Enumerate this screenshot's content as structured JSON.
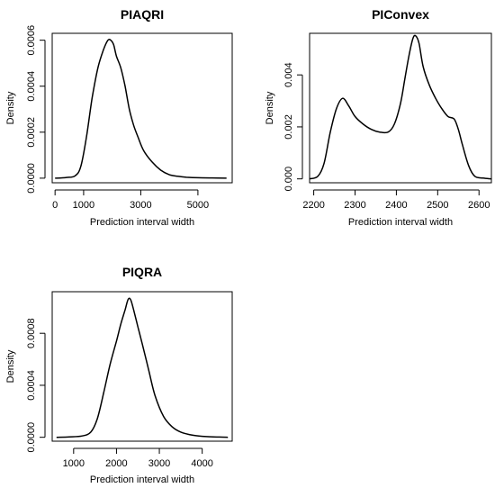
{
  "chart_data": [
    {
      "type": "line",
      "title": "PIAQRI",
      "xlabel": "Prediction interval width",
      "ylabel": "Density",
      "xlim": [
        -100,
        6200
      ],
      "ylim": [
        -2e-05,
        0.00063
      ],
      "xticks": [
        0,
        1000,
        3000,
        5000
      ],
      "xtick_labels": [
        "0",
        "1000",
        "3000",
        "5000"
      ],
      "yticks": [
        0.0,
        0.0002,
        0.0004,
        0.0006
      ],
      "ytick_labels": [
        "0.0000",
        "0.0002",
        "0.0004",
        "0.0006"
      ],
      "grid": false,
      "series": [
        {
          "x": [
            0,
            400,
            700,
            900,
            1100,
            1300,
            1500,
            1700,
            1850,
            1950,
            2050,
            2150,
            2300,
            2450,
            2600,
            2750,
            2900,
            3100,
            3400,
            3700,
            4000,
            4300,
            4600,
            5000,
            5500,
            6000
          ],
          "y": [
            0.0,
            3e-06,
            1e-05,
            5e-05,
            0.00018,
            0.00035,
            0.00048,
            0.00056,
            0.0006,
            0.0006,
            0.00058,
            0.00053,
            0.00048,
            0.0004,
            0.0003,
            0.00023,
            0.00018,
            0.00012,
            7e-05,
            3.5e-05,
            1.5e-05,
            8e-06,
            4e-06,
            2e-06,
            1e-06,
            0.0
          ]
        }
      ]
    },
    {
      "type": "line",
      "title": "PIConvex",
      "xlabel": "Prediction interval width",
      "ylabel": "Density",
      "xlim": [
        2190,
        2630
      ],
      "ylim": [
        -0.00015,
        0.0056
      ],
      "xticks": [
        2200,
        2300,
        2400,
        2500,
        2600
      ],
      "xtick_labels": [
        "2200",
        "2300",
        "2400",
        "2500",
        "2600"
      ],
      "yticks": [
        0.0,
        0.002,
        0.004
      ],
      "ytick_labels": [
        "0.000",
        "0.002",
        "0.004"
      ],
      "grid": false,
      "series": [
        {
          "x": [
            2190,
            2210,
            2225,
            2240,
            2255,
            2270,
            2285,
            2300,
            2320,
            2340,
            2360,
            2380,
            2395,
            2410,
            2420,
            2430,
            2440,
            2447,
            2455,
            2465,
            2480,
            2495,
            2510,
            2525,
            2540,
            2550,
            2560,
            2575,
            2590,
            2610,
            2630
          ],
          "y": [
            0.0,
            0.0001,
            0.0006,
            0.0018,
            0.0027,
            0.0031,
            0.0028,
            0.0024,
            0.0021,
            0.0019,
            0.0018,
            0.0018,
            0.0021,
            0.0029,
            0.0038,
            0.0047,
            0.0054,
            0.0055,
            0.0052,
            0.0043,
            0.0036,
            0.0031,
            0.0027,
            0.0024,
            0.0023,
            0.0019,
            0.0013,
            0.0005,
            0.0001,
            3e-05,
            0.0
          ]
        }
      ]
    },
    {
      "type": "line",
      "title": "PIQRA",
      "xlabel": "Prediction interval width",
      "ylabel": "Density",
      "xlim": [
        500,
        4700
      ],
      "ylim": [
        -3e-05,
        0.00112
      ],
      "xticks": [
        1000,
        2000,
        3000,
        4000
      ],
      "xtick_labels": [
        "1000",
        "2000",
        "3000",
        "4000"
      ],
      "yticks": [
        0.0,
        0.0004,
        0.0008
      ],
      "ytick_labels": [
        "0.0000",
        "0.0004",
        "0.0008"
      ],
      "grid": false,
      "series": [
        {
          "x": [
            600,
            900,
            1200,
            1400,
            1550,
            1700,
            1850,
            2000,
            2100,
            2200,
            2270,
            2330,
            2400,
            2500,
            2600,
            2750,
            2900,
            3100,
            3300,
            3500,
            3800,
            4100,
            4400,
            4600
          ],
          "y": [
            0.0,
            3e-06,
            1e-05,
            4e-05,
            0.00014,
            0.00034,
            0.00056,
            0.00074,
            0.00087,
            0.00098,
            0.00106,
            0.00106,
            0.00098,
            0.00085,
            0.00072,
            0.00052,
            0.00032,
            0.00016,
            8e-05,
            4e-05,
            1.5e-05,
            5e-06,
            2e-06,
            0.0
          ]
        }
      ]
    }
  ]
}
